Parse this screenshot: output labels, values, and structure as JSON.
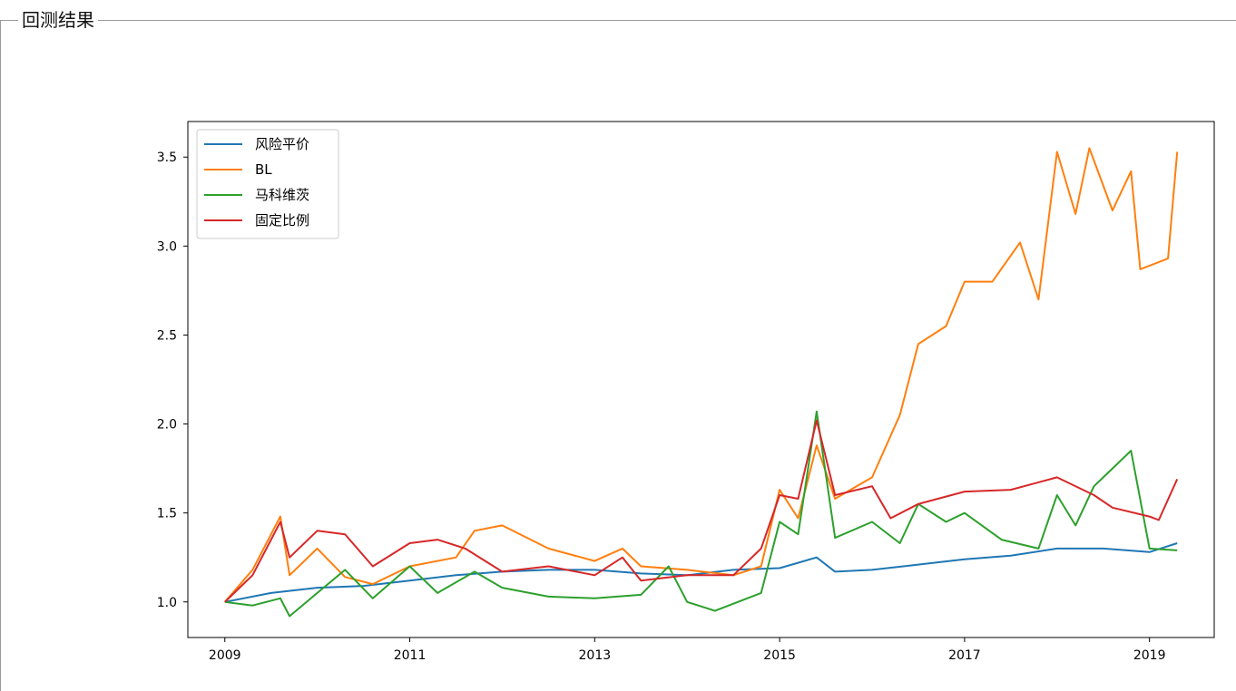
{
  "panel": {
    "title": "回测结果"
  },
  "chart_data": {
    "type": "line",
    "title": "",
    "xlabel": "",
    "ylabel": "",
    "xlim": [
      2008.6,
      2019.7
    ],
    "ylim": [
      0.8,
      3.7
    ],
    "x_ticks": [
      2009,
      2011,
      2013,
      2015,
      2017,
      2019
    ],
    "x_tick_labels": [
      "2009",
      "2011",
      "2013",
      "2015",
      "2017",
      "2019"
    ],
    "y_ticks": [
      1.0,
      1.5,
      2.0,
      2.5,
      3.0,
      3.5
    ],
    "y_tick_labels": [
      "1.0",
      "1.5",
      "2.0",
      "2.5",
      "3.0",
      "3.5"
    ],
    "grid": false,
    "legend_position": "upper-left",
    "series": [
      {
        "name": "风险平价",
        "color": "#1f77b4",
        "points": [
          [
            2009.0,
            1.0
          ],
          [
            2009.5,
            1.05
          ],
          [
            2010.0,
            1.08
          ],
          [
            2010.5,
            1.09
          ],
          [
            2011.0,
            1.12
          ],
          [
            2011.5,
            1.15
          ],
          [
            2012.0,
            1.17
          ],
          [
            2012.5,
            1.18
          ],
          [
            2013.0,
            1.18
          ],
          [
            2013.5,
            1.16
          ],
          [
            2014.0,
            1.15
          ],
          [
            2014.5,
            1.18
          ],
          [
            2015.0,
            1.19
          ],
          [
            2015.4,
            1.25
          ],
          [
            2015.6,
            1.17
          ],
          [
            2016.0,
            1.18
          ],
          [
            2016.5,
            1.21
          ],
          [
            2017.0,
            1.24
          ],
          [
            2017.5,
            1.26
          ],
          [
            2018.0,
            1.3
          ],
          [
            2018.5,
            1.3
          ],
          [
            2019.0,
            1.28
          ],
          [
            2019.3,
            1.33
          ]
        ]
      },
      {
        "name": "BL",
        "color": "#ff7f0e",
        "points": [
          [
            2009.0,
            1.0
          ],
          [
            2009.3,
            1.18
          ],
          [
            2009.6,
            1.48
          ],
          [
            2009.7,
            1.15
          ],
          [
            2010.0,
            1.3
          ],
          [
            2010.3,
            1.14
          ],
          [
            2010.6,
            1.1
          ],
          [
            2011.0,
            1.2
          ],
          [
            2011.5,
            1.25
          ],
          [
            2011.7,
            1.4
          ],
          [
            2012.0,
            1.43
          ],
          [
            2012.5,
            1.3
          ],
          [
            2013.0,
            1.23
          ],
          [
            2013.3,
            1.3
          ],
          [
            2013.5,
            1.2
          ],
          [
            2014.0,
            1.18
          ],
          [
            2014.5,
            1.15
          ],
          [
            2014.8,
            1.2
          ],
          [
            2015.0,
            1.63
          ],
          [
            2015.2,
            1.47
          ],
          [
            2015.4,
            1.88
          ],
          [
            2015.6,
            1.58
          ],
          [
            2016.0,
            1.7
          ],
          [
            2016.3,
            2.05
          ],
          [
            2016.5,
            2.45
          ],
          [
            2016.8,
            2.55
          ],
          [
            2017.0,
            2.8
          ],
          [
            2017.3,
            2.8
          ],
          [
            2017.6,
            3.02
          ],
          [
            2017.8,
            2.7
          ],
          [
            2018.0,
            3.53
          ],
          [
            2018.2,
            3.18
          ],
          [
            2018.35,
            3.55
          ],
          [
            2018.6,
            3.2
          ],
          [
            2018.8,
            3.42
          ],
          [
            2018.9,
            2.87
          ],
          [
            2019.2,
            2.93
          ],
          [
            2019.3,
            3.53
          ]
        ]
      },
      {
        "name": "马科维茨",
        "color": "#2ca02c",
        "points": [
          [
            2009.0,
            1.0
          ],
          [
            2009.3,
            0.98
          ],
          [
            2009.6,
            1.02
          ],
          [
            2009.7,
            0.92
          ],
          [
            2010.0,
            1.05
          ],
          [
            2010.3,
            1.18
          ],
          [
            2010.6,
            1.02
          ],
          [
            2011.0,
            1.2
          ],
          [
            2011.3,
            1.05
          ],
          [
            2011.7,
            1.17
          ],
          [
            2012.0,
            1.08
          ],
          [
            2012.5,
            1.03
          ],
          [
            2013.0,
            1.02
          ],
          [
            2013.5,
            1.04
          ],
          [
            2013.8,
            1.2
          ],
          [
            2014.0,
            1.0
          ],
          [
            2014.3,
            0.95
          ],
          [
            2014.8,
            1.05
          ],
          [
            2015.0,
            1.45
          ],
          [
            2015.2,
            1.38
          ],
          [
            2015.4,
            2.07
          ],
          [
            2015.6,
            1.36
          ],
          [
            2016.0,
            1.45
          ],
          [
            2016.3,
            1.33
          ],
          [
            2016.5,
            1.55
          ],
          [
            2016.8,
            1.45
          ],
          [
            2017.0,
            1.5
          ],
          [
            2017.4,
            1.35
          ],
          [
            2017.8,
            1.3
          ],
          [
            2018.0,
            1.6
          ],
          [
            2018.2,
            1.43
          ],
          [
            2018.4,
            1.65
          ],
          [
            2018.6,
            1.75
          ],
          [
            2018.8,
            1.85
          ],
          [
            2019.0,
            1.3
          ],
          [
            2019.3,
            1.29
          ]
        ]
      },
      {
        "name": "固定比例",
        "color": "#d62728",
        "points": [
          [
            2009.0,
            1.0
          ],
          [
            2009.3,
            1.15
          ],
          [
            2009.6,
            1.45
          ],
          [
            2009.7,
            1.25
          ],
          [
            2010.0,
            1.4
          ],
          [
            2010.3,
            1.38
          ],
          [
            2010.6,
            1.2
          ],
          [
            2011.0,
            1.33
          ],
          [
            2011.3,
            1.35
          ],
          [
            2011.6,
            1.3
          ],
          [
            2012.0,
            1.17
          ],
          [
            2012.5,
            1.2
          ],
          [
            2013.0,
            1.15
          ],
          [
            2013.3,
            1.25
          ],
          [
            2013.5,
            1.12
          ],
          [
            2014.0,
            1.15
          ],
          [
            2014.5,
            1.15
          ],
          [
            2014.8,
            1.3
          ],
          [
            2015.0,
            1.6
          ],
          [
            2015.2,
            1.58
          ],
          [
            2015.4,
            2.02
          ],
          [
            2015.6,
            1.6
          ],
          [
            2016.0,
            1.65
          ],
          [
            2016.2,
            1.47
          ],
          [
            2016.5,
            1.55
          ],
          [
            2017.0,
            1.62
          ],
          [
            2017.5,
            1.63
          ],
          [
            2018.0,
            1.7
          ],
          [
            2018.4,
            1.6
          ],
          [
            2018.6,
            1.53
          ],
          [
            2019.0,
            1.48
          ],
          [
            2019.1,
            1.46
          ],
          [
            2019.3,
            1.69
          ]
        ]
      }
    ]
  }
}
